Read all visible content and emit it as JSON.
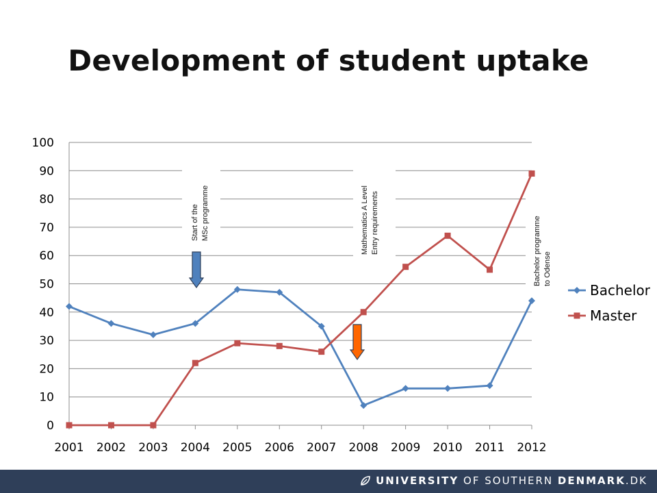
{
  "slide": {
    "title": "Development of student uptake"
  },
  "footer": {
    "logo_part1": "UNIVERSITY",
    "logo_part2": " OF SOUTHERN ",
    "logo_part3": "DENMARK",
    "logo_part4": ".DK",
    "logo_icon": "leaf-icon"
  },
  "chart_data": {
    "type": "line",
    "title": "",
    "xlabel": "",
    "ylabel": "",
    "x": [
      "2001",
      "2002",
      "2003",
      "2004",
      "2005",
      "2006",
      "2007",
      "2008",
      "2009",
      "2010",
      "2011",
      "2012"
    ],
    "ylim": [
      0,
      100
    ],
    "yticks": [
      0,
      10,
      20,
      30,
      40,
      50,
      60,
      70,
      80,
      90,
      100
    ],
    "grid": true,
    "legend_position": "right",
    "series": [
      {
        "name": "Bachelor",
        "color": "#4f81bd",
        "marker": "diamond",
        "values": [
          42,
          36,
          32,
          36,
          48,
          47,
          35,
          7,
          13,
          13,
          14,
          44
        ]
      },
      {
        "name": "Master",
        "color": "#c0504d",
        "marker": "square",
        "values": [
          0,
          0,
          0,
          22,
          29,
          28,
          26,
          40,
          56,
          67,
          55,
          89
        ]
      }
    ],
    "annotations": [
      {
        "lines": [
          "Start of the",
          "MSc programme"
        ],
        "x": "2004",
        "arrow_color": "#4f81bd"
      },
      {
        "lines": [
          "Mathematics A Level",
          "Entry requirements"
        ],
        "x": "2008",
        "arrow_color": "#ff6600"
      },
      {
        "lines": [
          "Bachelor  programme",
          "to Odense"
        ],
        "x": "2012"
      }
    ]
  }
}
